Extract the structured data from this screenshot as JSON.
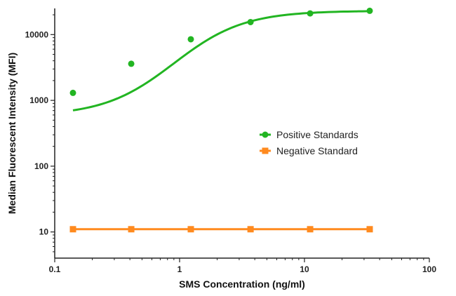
{
  "chart_data": {
    "type": "scatter",
    "title": "",
    "xlabel": "SMS Concentration (ng/ml)",
    "ylabel": "Median Fluorescent Intensity (MFI)",
    "xscale": "log",
    "yscale": "log",
    "xlim": [
      0.1,
      100
    ],
    "ylim": [
      4,
      25000
    ],
    "x_ticks": [
      0.1,
      1,
      10,
      100
    ],
    "x_tick_labels": [
      "0.1",
      "1",
      "10",
      "100"
    ],
    "y_ticks": [
      10,
      100,
      1000,
      10000
    ],
    "y_tick_labels": [
      "10",
      "100",
      "1000",
      "10000"
    ],
    "grid": false,
    "legend_position": "center-right",
    "series": [
      {
        "name": "Positive Standards",
        "color": "#22b522",
        "marker": "circle",
        "x": [
          0.14,
          0.41,
          1.23,
          3.7,
          11.1,
          33.3
        ],
        "y": [
          1300,
          3600,
          8500,
          15500,
          21000,
          23000
        ],
        "fit": "sigmoid"
      },
      {
        "name": "Negative Standard",
        "color": "#ff8a1e",
        "marker": "square",
        "x": [
          0.14,
          0.41,
          1.23,
          3.7,
          11.1,
          33.3
        ],
        "y": [
          11,
          11,
          11,
          11,
          11,
          11
        ],
        "fit": "line"
      }
    ]
  }
}
